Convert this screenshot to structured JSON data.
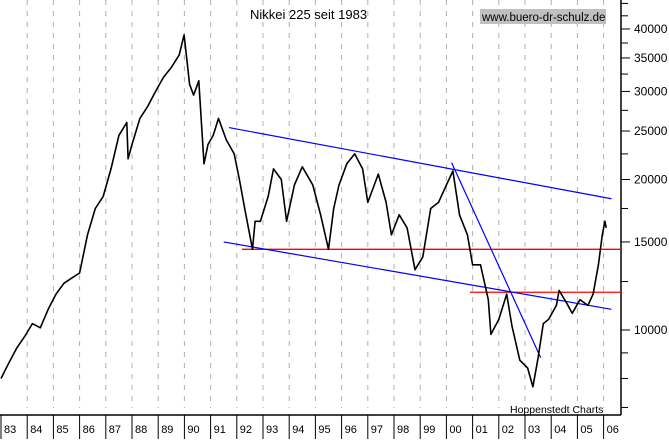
{
  "chart_data": {
    "type": "line",
    "title": "Nikkei 225 seit 1983",
    "watermark": "www.buero-dr-schulz.de",
    "credit": "Hoppenstedt Charts",
    "y_scale": "log",
    "ylim": [
      6500,
      46000
    ],
    "xlim": [
      1983,
      2006.3
    ],
    "grid": "vertical dashed at each year",
    "y_ticks": [
      10000,
      15000,
      20000,
      25000,
      30000,
      35000,
      40000
    ],
    "y_tick_labels": [
      "10000",
      "15000",
      "20000",
      "25000",
      "30000",
      "35000",
      "40000"
    ],
    "x_tick_labels": [
      "83",
      "84",
      "85",
      "86",
      "87",
      "88",
      "89",
      "90",
      "91",
      "92",
      "93",
      "94",
      "95",
      "96",
      "97",
      "98",
      "99",
      "00",
      "01",
      "02",
      "03",
      "04",
      "05",
      "06"
    ],
    "colors": {
      "series": "#000000",
      "trendline": "#0000ff",
      "horizontal": "#ff0000",
      "grid": "#b0b0b0",
      "watermark_bg": "#c0c0c0"
    },
    "series": [
      {
        "points": [
          [
            1983.0,
            8000
          ],
          [
            1983.3,
            8600
          ],
          [
            1983.6,
            9200
          ],
          [
            1983.9,
            9700
          ],
          [
            1984.2,
            10300
          ],
          [
            1984.5,
            10100
          ],
          [
            1984.8,
            11000
          ],
          [
            1985.1,
            11800
          ],
          [
            1985.4,
            12400
          ],
          [
            1985.7,
            12700
          ],
          [
            1986.0,
            13000
          ],
          [
            1986.3,
            15500
          ],
          [
            1986.6,
            17500
          ],
          [
            1986.9,
            18500
          ],
          [
            1987.2,
            21000
          ],
          [
            1987.5,
            24500
          ],
          [
            1987.8,
            26000
          ],
          [
            1987.85,
            22000
          ],
          [
            1988.0,
            23500
          ],
          [
            1988.3,
            26500
          ],
          [
            1988.6,
            28000
          ],
          [
            1988.9,
            30000
          ],
          [
            1989.2,
            32000
          ],
          [
            1989.5,
            33500
          ],
          [
            1989.8,
            35500
          ],
          [
            1989.99,
            38900
          ],
          [
            1990.2,
            31000
          ],
          [
            1990.35,
            29500
          ],
          [
            1990.55,
            31500
          ],
          [
            1990.75,
            21500
          ],
          [
            1990.9,
            23500
          ],
          [
            1991.1,
            24500
          ],
          [
            1991.3,
            26500
          ],
          [
            1991.6,
            24000
          ],
          [
            1991.9,
            22500
          ],
          [
            1992.1,
            20000
          ],
          [
            1992.3,
            17500
          ],
          [
            1992.6,
            14500
          ],
          [
            1992.7,
            16500
          ],
          [
            1992.9,
            16500
          ],
          [
            1993.2,
            18500
          ],
          [
            1993.4,
            21000
          ],
          [
            1993.7,
            20000
          ],
          [
            1993.9,
            16500
          ],
          [
            1994.2,
            19500
          ],
          [
            1994.5,
            21200
          ],
          [
            1994.9,
            19500
          ],
          [
            1995.2,
            17000
          ],
          [
            1995.5,
            14500
          ],
          [
            1995.7,
            17500
          ],
          [
            1995.9,
            19500
          ],
          [
            1996.2,
            21500
          ],
          [
            1996.5,
            22500
          ],
          [
            1996.8,
            21000
          ],
          [
            1997.0,
            18000
          ],
          [
            1997.4,
            20500
          ],
          [
            1997.7,
            18000
          ],
          [
            1997.9,
            15500
          ],
          [
            1998.2,
            17000
          ],
          [
            1998.5,
            16000
          ],
          [
            1998.8,
            13200
          ],
          [
            1999.1,
            14000
          ],
          [
            1999.4,
            17500
          ],
          [
            1999.7,
            18000
          ],
          [
            2000.0,
            19500
          ],
          [
            2000.25,
            20800
          ],
          [
            2000.5,
            17000
          ],
          [
            2000.8,
            15500
          ],
          [
            2001.0,
            13500
          ],
          [
            2001.3,
            13500
          ],
          [
            2001.6,
            11500
          ],
          [
            2001.7,
            9800
          ],
          [
            2002.0,
            10500
          ],
          [
            2002.3,
            11800
          ],
          [
            2002.5,
            10200
          ],
          [
            2002.8,
            8700
          ],
          [
            2003.1,
            8400
          ],
          [
            2003.3,
            7700
          ],
          [
            2003.5,
            8800
          ],
          [
            2003.7,
            10300
          ],
          [
            2003.9,
            10500
          ],
          [
            2004.2,
            11200
          ],
          [
            2004.3,
            12000
          ],
          [
            2004.6,
            11300
          ],
          [
            2004.8,
            10800
          ],
          [
            2005.1,
            11500
          ],
          [
            2005.4,
            11200
          ],
          [
            2005.6,
            11800
          ],
          [
            2005.8,
            13500
          ],
          [
            2005.95,
            15500
          ],
          [
            2006.05,
            16500
          ],
          [
            2006.1,
            16000
          ]
        ]
      }
    ],
    "trendlines": [
      {
        "color": "#0000ff",
        "from": [
          1991.7,
          25400
        ],
        "to": [
          2006.3,
          18300
        ]
      },
      {
        "color": "#0000ff",
        "from": [
          1991.5,
          15000
        ],
        "to": [
          2006.3,
          11000
        ]
      },
      {
        "color": "#0000ff",
        "from": [
          2000.2,
          21600
        ],
        "to": [
          2003.6,
          8800
        ]
      }
    ],
    "horizontal_lines": [
      {
        "color": "#ff0000",
        "value": 14500,
        "from_x": 1992.2
      },
      {
        "color": "#ff0000",
        "value": 11900,
        "from_x": 2000.9
      }
    ]
  }
}
